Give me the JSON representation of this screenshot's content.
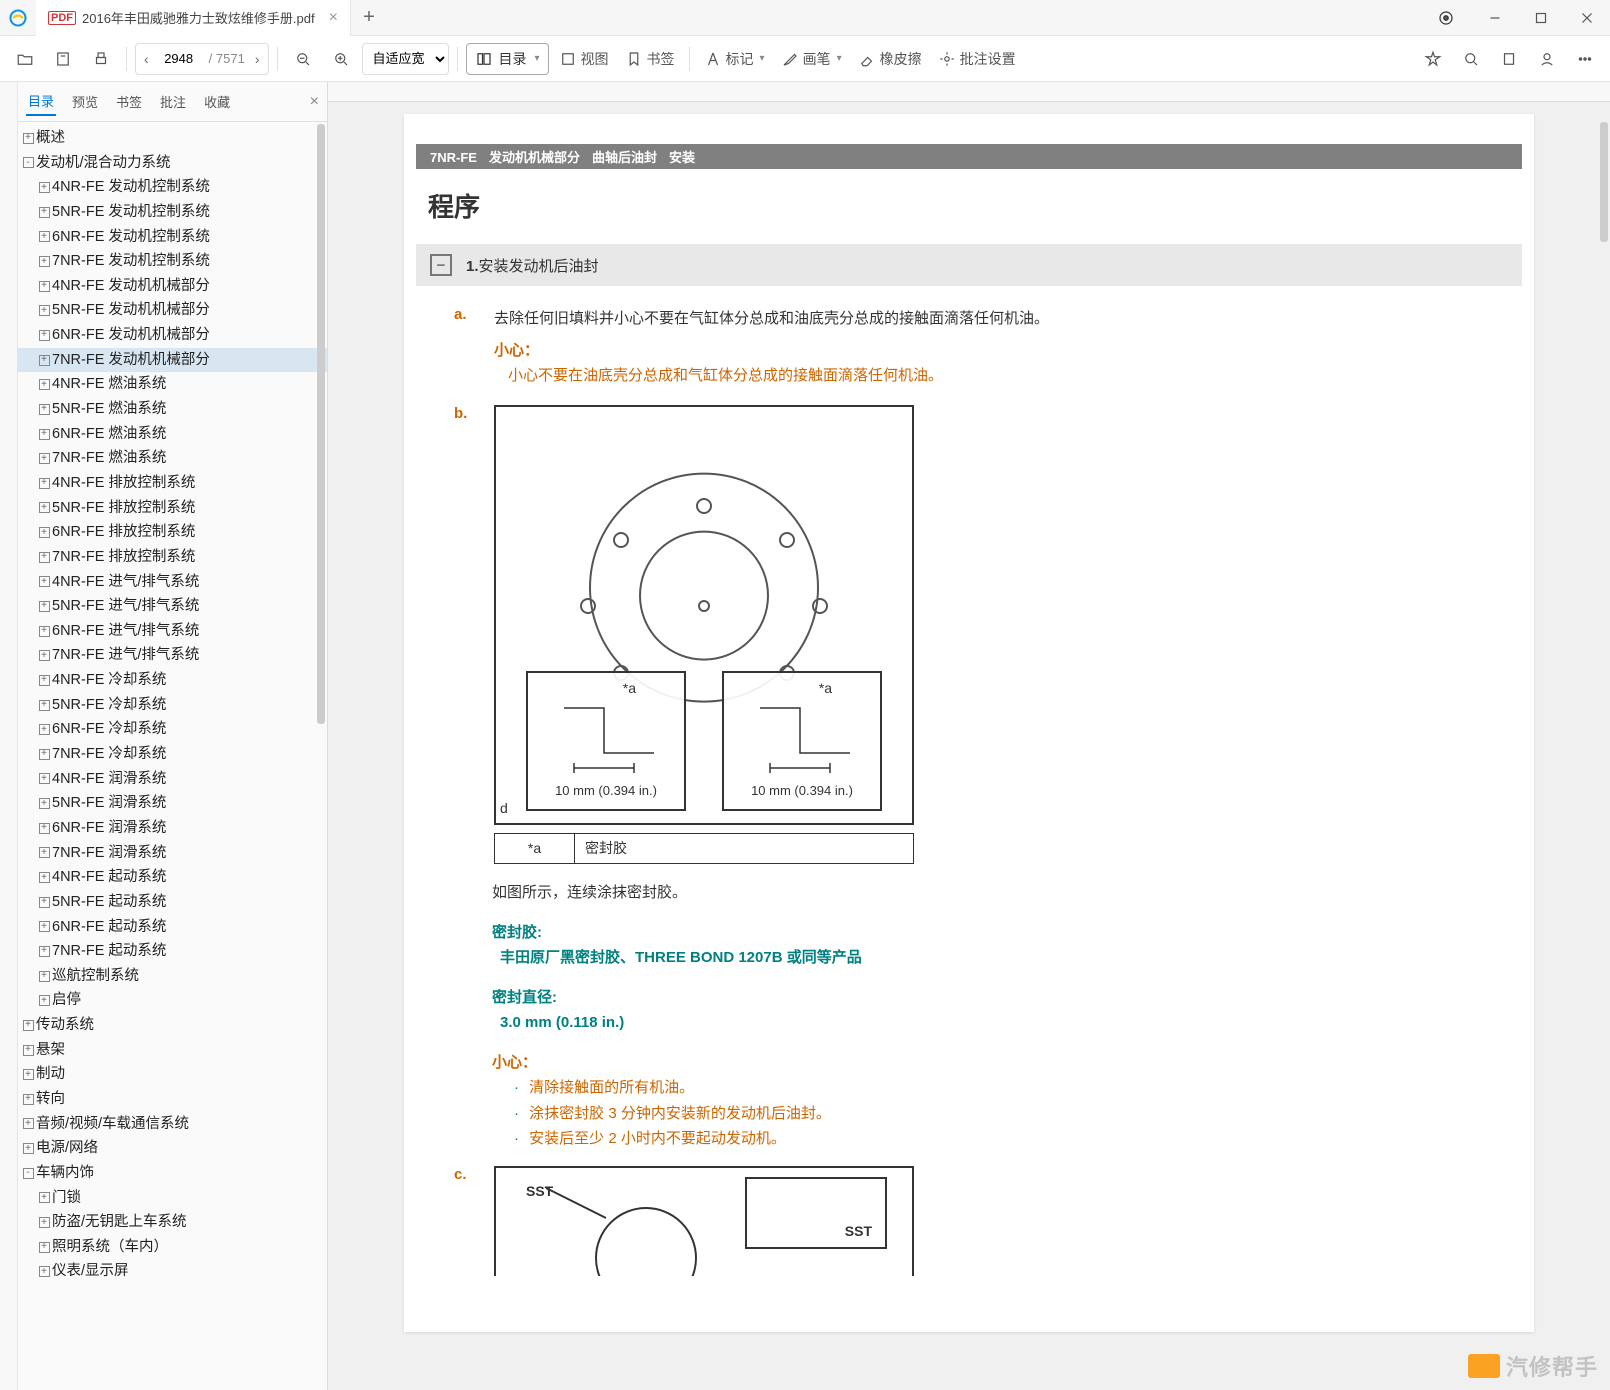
{
  "titlebar": {
    "tab_title": "2016年丰田威驰雅力士致炫维修手册.pdf",
    "tab_icon_text": "PDF"
  },
  "toolbar": {
    "page_current": "2948",
    "page_total": "/ 7571",
    "zoom": "自适应宽",
    "outline": "目录",
    "view": "视图",
    "bookmark": "书签",
    "annotate": "标记",
    "pen": "画笔",
    "eraser": "橡皮擦",
    "batch": "批注设置"
  },
  "sidebar": {
    "tabs": {
      "outline": "目录",
      "preview": "预览",
      "bookmark": "书签",
      "annotate": "批注",
      "favorite": "收藏"
    },
    "nodes": [
      {
        "lvl": 0,
        "exp": "+",
        "t": "概述"
      },
      {
        "lvl": 0,
        "exp": "-",
        "t": "发动机/混合动力系统"
      },
      {
        "lvl": 1,
        "exp": "+",
        "t": "4NR-FE 发动机控制系统"
      },
      {
        "lvl": 1,
        "exp": "+",
        "t": "5NR-FE 发动机控制系统"
      },
      {
        "lvl": 1,
        "exp": "+",
        "t": "6NR-FE 发动机控制系统"
      },
      {
        "lvl": 1,
        "exp": "+",
        "t": "7NR-FE 发动机控制系统"
      },
      {
        "lvl": 1,
        "exp": "+",
        "t": "4NR-FE 发动机机械部分"
      },
      {
        "lvl": 1,
        "exp": "+",
        "t": "5NR-FE 发动机机械部分"
      },
      {
        "lvl": 1,
        "exp": "+",
        "t": "6NR-FE 发动机机械部分"
      },
      {
        "lvl": 1,
        "exp": "+",
        "t": "7NR-FE 发动机机械部分",
        "sel": true
      },
      {
        "lvl": 1,
        "exp": "+",
        "t": "4NR-FE 燃油系统"
      },
      {
        "lvl": 1,
        "exp": "+",
        "t": "5NR-FE 燃油系统"
      },
      {
        "lvl": 1,
        "exp": "+",
        "t": "6NR-FE 燃油系统"
      },
      {
        "lvl": 1,
        "exp": "+",
        "t": "7NR-FE 燃油系统"
      },
      {
        "lvl": 1,
        "exp": "+",
        "t": "4NR-FE 排放控制系统"
      },
      {
        "lvl": 1,
        "exp": "+",
        "t": "5NR-FE 排放控制系统"
      },
      {
        "lvl": 1,
        "exp": "+",
        "t": "6NR-FE 排放控制系统"
      },
      {
        "lvl": 1,
        "exp": "+",
        "t": "7NR-FE 排放控制系统"
      },
      {
        "lvl": 1,
        "exp": "+",
        "t": "4NR-FE 进气/排气系统"
      },
      {
        "lvl": 1,
        "exp": "+",
        "t": "5NR-FE 进气/排气系统"
      },
      {
        "lvl": 1,
        "exp": "+",
        "t": "6NR-FE 进气/排气系统"
      },
      {
        "lvl": 1,
        "exp": "+",
        "t": "7NR-FE 进气/排气系统"
      },
      {
        "lvl": 1,
        "exp": "+",
        "t": "4NR-FE 冷却系统"
      },
      {
        "lvl": 1,
        "exp": "+",
        "t": "5NR-FE 冷却系统"
      },
      {
        "lvl": 1,
        "exp": "+",
        "t": "6NR-FE 冷却系统"
      },
      {
        "lvl": 1,
        "exp": "+",
        "t": "7NR-FE 冷却系统"
      },
      {
        "lvl": 1,
        "exp": "+",
        "t": "4NR-FE 润滑系统"
      },
      {
        "lvl": 1,
        "exp": "+",
        "t": "5NR-FE 润滑系统"
      },
      {
        "lvl": 1,
        "exp": "+",
        "t": "6NR-FE 润滑系统"
      },
      {
        "lvl": 1,
        "exp": "+",
        "t": "7NR-FE 润滑系统"
      },
      {
        "lvl": 1,
        "exp": "+",
        "t": "4NR-FE 起动系统"
      },
      {
        "lvl": 1,
        "exp": "+",
        "t": "5NR-FE 起动系统"
      },
      {
        "lvl": 1,
        "exp": "+",
        "t": "6NR-FE 起动系统"
      },
      {
        "lvl": 1,
        "exp": "+",
        "t": "7NR-FE 起动系统"
      },
      {
        "lvl": 1,
        "exp": "+",
        "t": "巡航控制系统"
      },
      {
        "lvl": 1,
        "exp": "+",
        "t": "启停"
      },
      {
        "lvl": 0,
        "exp": "+",
        "t": "传动系统"
      },
      {
        "lvl": 0,
        "exp": "+",
        "t": "悬架"
      },
      {
        "lvl": 0,
        "exp": "+",
        "t": "制动"
      },
      {
        "lvl": 0,
        "exp": "+",
        "t": "转向"
      },
      {
        "lvl": 0,
        "exp": "+",
        "t": "音频/视频/车载通信系统"
      },
      {
        "lvl": 0,
        "exp": "+",
        "t": "电源/网络"
      },
      {
        "lvl": 0,
        "exp": "-",
        "t": "车辆内饰"
      },
      {
        "lvl": 1,
        "exp": "+",
        "t": "门锁"
      },
      {
        "lvl": 1,
        "exp": "+",
        "t": "防盗/无钥匙上车系统"
      },
      {
        "lvl": 1,
        "exp": "+",
        "t": "照明系统（车内）"
      },
      {
        "lvl": 1,
        "exp": "+",
        "t": "仪表/显示屏"
      }
    ]
  },
  "doc": {
    "header": {
      "code": "7NR-FE",
      "p1": "发动机机械部分",
      "p2": "曲轴后油封",
      "p3": "安装"
    },
    "title": "程序",
    "step1": {
      "num": "1.",
      "text": "安装发动机后油封"
    },
    "a": {
      "label": "a.",
      "text": "去除任何旧填料并小心不要在气缸体分总成和油底壳分总成的接触面滴落任何机油。",
      "caution_label": "小心：",
      "caution": "小心不要在油底壳分总成和气缸体分总成的接触面滴落任何机油。"
    },
    "b": {
      "label": "b.",
      "detail_marker": "*a",
      "detail_dim": "10 mm (0.394 in.)",
      "corner_d": "d",
      "legend_key": "*a",
      "legend_val": "密封胶",
      "desc": "如图所示，连续涂抹密封胶。",
      "seal_label": "密封胶:",
      "seal": "丰田原厂黑密封胶、THREE BOND 1207B 或同等产品",
      "diam_label": "密封直径:",
      "diam": "3.0 mm (0.118 in.)",
      "caution_label": "小心：",
      "c1": "清除接触面的所有机油。",
      "c2": "涂抹密封胶 3 分钟内安装新的发动机后油封。",
      "c3": "安装后至少 2 小时内不要起动发动机。"
    },
    "c": {
      "label": "c.",
      "sst": "SST"
    },
    "colors": {
      "teal": "#008080",
      "orange": "#cc6600",
      "header_bg": "#808080"
    }
  },
  "watermark": "汽修帮手"
}
